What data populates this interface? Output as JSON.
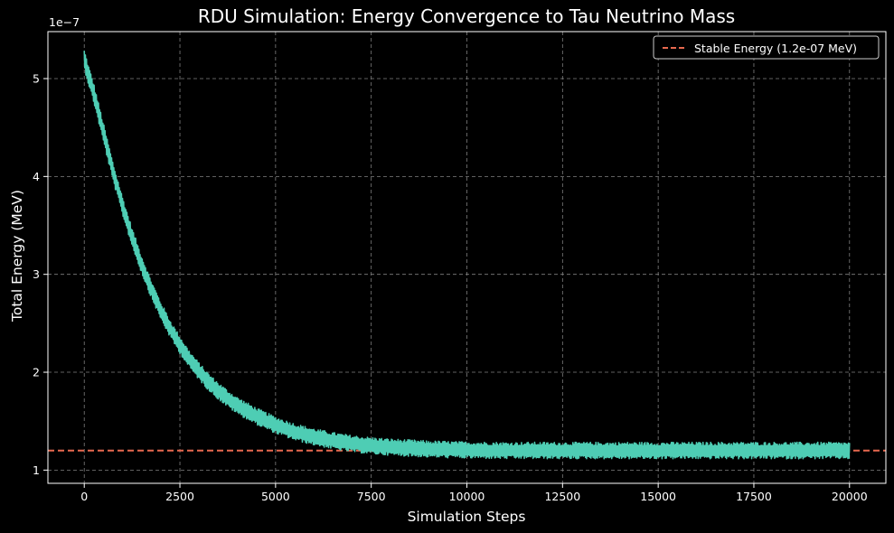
{
  "chart_data": {
    "type": "line",
    "title": "RDU Simulation: Energy Convergence to Tau Neutrino Mass",
    "xlabel": "Simulation Steps",
    "ylabel": "Total Energy (MeV)",
    "y_offset_label": "1e−7",
    "y_scale": 1e-07,
    "xlim": [
      -950,
      20950
    ],
    "ylim": [
      0.865,
      5.48
    ],
    "grid": true,
    "x_ticks": [
      0,
      2500,
      5000,
      7500,
      10000,
      12500,
      15000,
      17500,
      20000
    ],
    "x_tick_labels": [
      "0",
      "2500",
      "5000",
      "7500",
      "10000",
      "12500",
      "15000",
      "17500",
      "20000"
    ],
    "y_ticks": [
      1,
      2,
      3,
      4,
      5
    ],
    "y_tick_labels": [
      "1",
      "2",
      "3",
      "4",
      "5"
    ],
    "series": [
      {
        "name": "Total Energy",
        "color": "#4ecdb4",
        "x": [
          0,
          100,
          250,
          500,
          750,
          1000,
          1250,
          1500,
          1750,
          2000,
          2250,
          2500,
          2750,
          3000,
          3250,
          3500,
          3750,
          4000,
          4500,
          5000,
          5500,
          6000,
          6500,
          7000,
          7500,
          8000,
          8500,
          9000,
          10000,
          11000,
          12000,
          13000,
          14000,
          15000,
          16000,
          17000,
          18000,
          19000,
          20000
        ],
        "y_center": [
          5.2,
          5.05,
          4.85,
          4.45,
          4.05,
          3.7,
          3.38,
          3.1,
          2.85,
          2.63,
          2.44,
          2.28,
          2.13,
          2.01,
          1.9,
          1.81,
          1.73,
          1.66,
          1.55,
          1.46,
          1.39,
          1.34,
          1.3,
          1.27,
          1.25,
          1.235,
          1.225,
          1.215,
          1.205,
          1.2,
          1.2,
          1.2,
          1.2,
          1.2,
          1.2,
          1.2,
          1.2,
          1.2,
          1.2
        ],
        "noise_half_width": 0.08
      }
    ],
    "reference_line": {
      "label": "Stable Energy (1.2e-07 MeV)",
      "value": 1.2,
      "color": "#e8694f",
      "style": "dashed"
    },
    "legend_position": "top-right"
  },
  "colors": {
    "background": "#000000",
    "axes": "#ffffff",
    "grid": "#808080"
  }
}
